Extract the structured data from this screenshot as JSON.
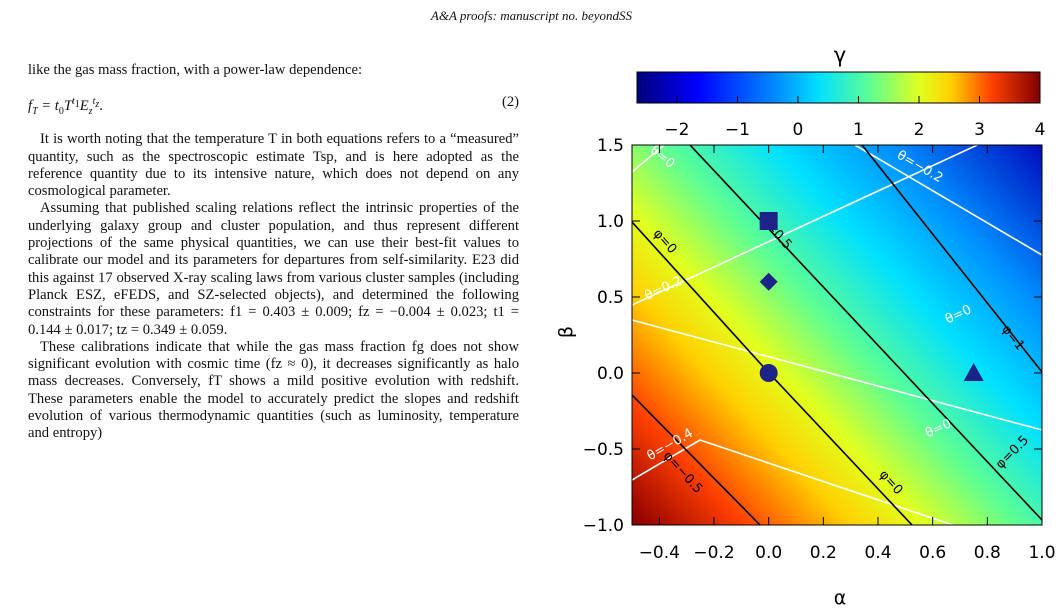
{
  "header": "A&A proofs: manuscript no. beyondSS",
  "body": {
    "intro": "like the gas mass fraction, with a power-law dependence:",
    "equation": {
      "segments": [
        "f",
        "T",
        " = t",
        "0",
        "T",
        "t",
        "1",
        "E",
        "z",
        "t",
        "z",
        "."
      ],
      "number": "(2)"
    },
    "paragraphs": [
      "It is worth noting that the temperature T in both equations refers to a “measured” quantity, such as the spectroscopic estimate Tsp, and is here adopted as the reference quantity due to its intensive nature, which does not depend on any cosmological parameter.",
      "Assuming that published scaling relations reflect the intrinsic properties of the underlying galaxy group and cluster population, and thus represent different projections of the same physical quantities, we can use their best-fit values to calibrate our model and its parameters for departures from self-similarity. E23 did this against 17 observed X-ray scaling laws from various cluster samples (including Planck ESZ, eFEDS, and SZ-selected objects), and determined the following constraints for these parameters: f1 = 0.403 ± 0.009; fz = −0.004 ± 0.023; t1 = 0.144 ± 0.017; tz = 0.349 ± 0.059.",
      "These calibrations indicate that while the gas mass fraction fg does not show significant evolution with cosmic time (fz ≈ 0), it decreases significantly as halo mass decreases. Conversely, fT shows a mild positive evolution with redshift. These parameters enable the model to accurately predict the slopes and redshift evolution of various thermodynamic quantities (such as luminosity, temperature and entropy)"
    ]
  },
  "figure": {
    "colorbar_title": "γ",
    "colorbar_lim": [
      -2.66,
      4
    ],
    "colorbar_ticks": [
      {
        "value": -2,
        "label": "−2"
      },
      {
        "value": -1,
        "label": "−1"
      },
      0,
      1,
      2,
      3,
      4
    ],
    "xlabel": "α",
    "ylabel": "β",
    "xlim": [
      -0.5,
      1.0
    ],
    "ylim": [
      -1.0,
      1.5
    ],
    "xticks": [
      {
        "value": -0.4,
        "label": "−0.4"
      },
      {
        "value": -0.2,
        "label": "−0.2"
      },
      {
        "value": 0,
        "label": "0.0"
      },
      {
        "value": 0.2,
        "label": "0.2"
      },
      {
        "value": 0.4,
        "label": "0.4"
      },
      {
        "value": 0.6,
        "label": "0.6"
      },
      {
        "value": 0.8,
        "label": "0.8"
      },
      {
        "value": 1.0,
        "label": "1.0"
      }
    ],
    "yticks": [
      {
        "value": -1.0,
        "label": "−1.0"
      },
      {
        "value": -0.5,
        "label": "−0.5"
      },
      {
        "value": 0,
        "label": "0.0"
      },
      {
        "value": 0.5,
        "label": "0.5"
      },
      {
        "value": 1.0,
        "label": "1.0"
      },
      {
        "value": 1.5,
        "label": "1.5"
      }
    ],
    "markers": [
      {
        "shape": "square",
        "alpha": 0,
        "beta": 1.0
      },
      {
        "shape": "diamond",
        "alpha": 0,
        "beta": 0.6
      },
      {
        "shape": "circle",
        "alpha": 0,
        "beta": 0
      },
      {
        "shape": "triangle",
        "alpha": 0.75,
        "beta": 0
      }
    ],
    "marker_color": "#1c2488",
    "contour_labels": [
      "θ=0",
      "θ=−0.2",
      "θ=0.2",
      "θ=0",
      "θ=−0.4",
      "θ=0",
      "φ=0",
      "φ=0.5",
      "φ=1",
      "φ=−0.5",
      "φ=0",
      "φ=0.5"
    ]
  }
}
